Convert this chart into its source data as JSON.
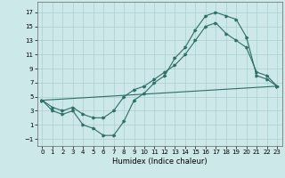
{
  "xlabel": "Humidex (Indice chaleur)",
  "background_color": "#cce8e8",
  "grid_color": "#aacfcf",
  "line_color": "#2d6e65",
  "xlim": [
    -0.5,
    23.5
  ],
  "ylim": [
    -2.0,
    18.5
  ],
  "xticks": [
    0,
    1,
    2,
    3,
    4,
    5,
    6,
    7,
    8,
    9,
    10,
    11,
    12,
    13,
    14,
    15,
    16,
    17,
    18,
    19,
    20,
    21,
    22,
    23
  ],
  "yticks": [
    -1,
    1,
    3,
    5,
    7,
    9,
    11,
    13,
    15,
    17
  ],
  "curve1_x": [
    0,
    1,
    2,
    3,
    4,
    5,
    6,
    7,
    8,
    9,
    10,
    11,
    12,
    13,
    14,
    15,
    16,
    17,
    18,
    19,
    20,
    21,
    22,
    23
  ],
  "curve1_y": [
    4.5,
    3.0,
    2.5,
    3.0,
    1.0,
    0.5,
    -0.5,
    -0.5,
    1.5,
    4.5,
    5.5,
    7.0,
    8.0,
    10.5,
    12.0,
    14.5,
    16.5,
    17.0,
    16.5,
    16.0,
    13.5,
    8.0,
    7.5,
    6.5
  ],
  "curve2_x": [
    0,
    23
  ],
  "curve2_y": [
    4.5,
    6.5
  ],
  "curve3_x": [
    0,
    1,
    2,
    3,
    4,
    5,
    6,
    7,
    8,
    9,
    10,
    11,
    12,
    13,
    14,
    15,
    16,
    17,
    18,
    19,
    20,
    21,
    22,
    23
  ],
  "curve3_y": [
    4.5,
    3.5,
    3.0,
    3.5,
    2.5,
    2.0,
    2.0,
    3.0,
    5.0,
    6.0,
    6.5,
    7.5,
    8.5,
    9.5,
    11.0,
    13.0,
    15.0,
    15.5,
    14.0,
    13.0,
    12.0,
    8.5,
    8.0,
    6.5
  ]
}
